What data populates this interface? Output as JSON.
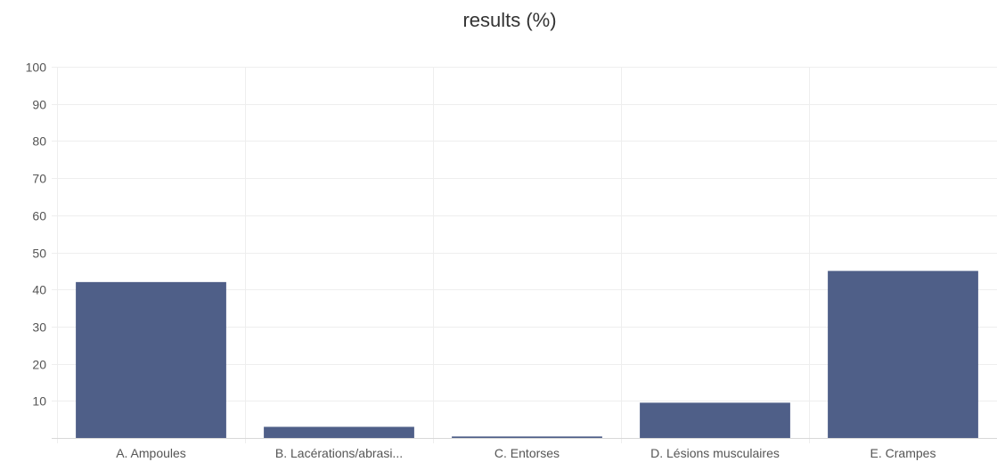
{
  "chart_data": {
    "type": "bar",
    "title": "results (%)",
    "xlabel": "",
    "ylabel": "",
    "categories": [
      "A. Ampoules",
      "B. Lacérations/abrasi...",
      "C. Entorses",
      "D. Lésions musculaires",
      "E. Crampes"
    ],
    "values": [
      42,
      3,
      0.4,
      9.5,
      45
    ],
    "ylim": [
      0,
      100
    ],
    "yticks": [
      10,
      20,
      30,
      40,
      50,
      60,
      70,
      80,
      90,
      100
    ],
    "grid": true,
    "legend": "none",
    "bar_color": "#4f5f88"
  }
}
